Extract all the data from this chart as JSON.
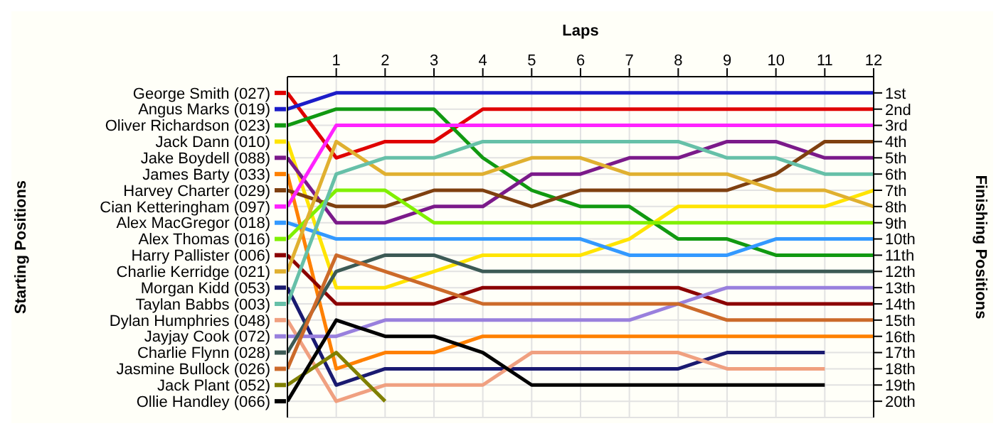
{
  "chart_data": {
    "type": "line",
    "xlabel": "Laps",
    "legend_title": "Starting Positions",
    "y2label": "Finishing Positions",
    "x": [
      0,
      1,
      2,
      3,
      4,
      5,
      6,
      7,
      8,
      9,
      10,
      11,
      12
    ],
    "xlim": [
      0,
      12
    ],
    "xticks": [
      1,
      2,
      3,
      4,
      5,
      6,
      7,
      8,
      9,
      10,
      11,
      12
    ],
    "y2lim": [
      21,
      0
    ],
    "y2ticks": [
      {
        "value": 1,
        "label": "1st"
      },
      {
        "value": 2,
        "label": "2nd"
      },
      {
        "value": 3,
        "label": "3rd"
      },
      {
        "value": 4,
        "label": "4th"
      },
      {
        "value": 5,
        "label": "5th"
      },
      {
        "value": 6,
        "label": "6th"
      },
      {
        "value": 7,
        "label": "7th"
      },
      {
        "value": 8,
        "label": "8th"
      },
      {
        "value": 9,
        "label": "9th"
      },
      {
        "value": 10,
        "label": "10th"
      },
      {
        "value": 11,
        "label": "11th"
      },
      {
        "value": 12,
        "label": "12th"
      },
      {
        "value": 13,
        "label": "13th"
      },
      {
        "value": 14,
        "label": "14th"
      },
      {
        "value": 15,
        "label": "15th"
      },
      {
        "value": 16,
        "label": "16th"
      },
      {
        "value": 17,
        "label": "17th"
      },
      {
        "value": 18,
        "label": "18th"
      },
      {
        "value": 19,
        "label": "19th"
      },
      {
        "value": 20,
        "label": "20th"
      }
    ],
    "grid": true,
    "legend": "left",
    "marker": "none",
    "line_style": "solid",
    "series": [
      {
        "name": "George Smith (027)",
        "axis": "y2",
        "color": "#e00000",
        "values": [
          1,
          5,
          4,
          4,
          2,
          2,
          2,
          2,
          2,
          2,
          2,
          2,
          2
        ]
      },
      {
        "name": "Angus Marks (019)",
        "axis": "y2",
        "color": "#1c1cc8",
        "values": [
          2,
          1,
          1,
          1,
          1,
          1,
          1,
          1,
          1,
          1,
          1,
          1,
          1
        ]
      },
      {
        "name": "Oliver Richardson (023)",
        "axis": "y2",
        "color": "#119911",
        "values": [
          3,
          2,
          2,
          2,
          5,
          7,
          8,
          8,
          10,
          10,
          11,
          11,
          11
        ]
      },
      {
        "name": "Jack Dann (010)",
        "axis": "y2",
        "color": "#ffe400",
        "values": [
          4,
          13,
          13,
          12,
          11,
          11,
          11,
          10,
          8,
          8,
          8,
          8,
          7
        ]
      },
      {
        "name": "Jake Boydell (088)",
        "axis": "y2",
        "color": "#7b1a8a",
        "values": [
          5,
          9,
          9,
          8,
          8,
          6,
          6,
          5,
          5,
          4,
          4,
          5,
          5
        ]
      },
      {
        "name": "James Barty (033)",
        "axis": "y2",
        "color": "#ff8000",
        "values": [
          6,
          18,
          17,
          17,
          16,
          16,
          16,
          16,
          16,
          16,
          16,
          16,
          16
        ]
      },
      {
        "name": "Harvey Charter (029)",
        "axis": "y2",
        "color": "#7f4010",
        "values": [
          7,
          8,
          8,
          7,
          7,
          8,
          7,
          7,
          7,
          7,
          6,
          4,
          4
        ]
      },
      {
        "name": "Cian Ketteringham (097)",
        "axis": "y2",
        "color": "#ff22ff",
        "values": [
          8,
          3,
          3,
          3,
          3,
          3,
          3,
          3,
          3,
          3,
          3,
          3,
          3
        ]
      },
      {
        "name": "Alex MacGregor (018)",
        "axis": "y2",
        "color": "#3399ff",
        "values": [
          9,
          10,
          10,
          10,
          10,
          10,
          10,
          11,
          11,
          11,
          10,
          10,
          10
        ]
      },
      {
        "name": "Alex Thomas (016)",
        "axis": "y2",
        "color": "#80f000",
        "values": [
          10,
          7,
          7,
          9,
          9,
          9,
          9,
          9,
          9,
          9,
          9,
          9,
          9
        ]
      },
      {
        "name": "Harry Pallister (006)",
        "axis": "y2",
        "color": "#8b0000",
        "values": [
          11,
          14,
          14,
          14,
          13,
          13,
          13,
          13,
          13,
          14,
          14,
          14,
          14
        ]
      },
      {
        "name": "Charlie Kerridge (021)",
        "axis": "y2",
        "color": "#e0b030",
        "values": [
          12,
          4,
          6,
          6,
          6,
          5,
          5,
          6,
          6,
          6,
          7,
          7,
          8
        ]
      },
      {
        "name": "Morgan Kidd (053)",
        "axis": "y2",
        "color": "#1a1a70",
        "values": [
          13,
          19,
          18,
          18,
          18,
          18,
          18,
          18,
          18,
          17,
          17,
          17,
          null
        ]
      },
      {
        "name": "Taylan Babbs (003)",
        "axis": "y2",
        "color": "#66c0a8",
        "values": [
          14,
          6,
          5,
          5,
          4,
          4,
          4,
          4,
          4,
          5,
          5,
          6,
          6
        ]
      },
      {
        "name": "Dylan Humphries (048)",
        "axis": "y2",
        "color": "#f0a080",
        "values": [
          15,
          20,
          19,
          19,
          19,
          17,
          17,
          17,
          17,
          18,
          18,
          18,
          null
        ]
      },
      {
        "name": "Jayjay Cook (072)",
        "axis": "y2",
        "color": "#9980dd",
        "values": [
          16,
          16,
          15,
          15,
          15,
          15,
          15,
          15,
          14,
          13,
          13,
          13,
          13
        ]
      },
      {
        "name": "Charlie Flynn (028)",
        "axis": "y2",
        "color": "#3c5a55",
        "values": [
          17,
          12,
          11,
          11,
          12,
          12,
          12,
          12,
          12,
          12,
          12,
          12,
          12
        ]
      },
      {
        "name": "Jasmine Bullock (026)",
        "axis": "y2",
        "color": "#cc6a2a",
        "values": [
          18,
          11,
          12,
          13,
          14,
          14,
          14,
          14,
          14,
          15,
          15,
          15,
          15
        ]
      },
      {
        "name": "Jack Plant (052)",
        "axis": "y2",
        "color": "#808000",
        "values": [
          19,
          17,
          20,
          null,
          null,
          null,
          null,
          null,
          null,
          null,
          null,
          null,
          null
        ]
      },
      {
        "name": "Ollie Handley (066)",
        "axis": "y2",
        "color": "#000000",
        "values": [
          20,
          15,
          16,
          16,
          17,
          19,
          19,
          19,
          19,
          19,
          19,
          19,
          null
        ]
      }
    ]
  }
}
